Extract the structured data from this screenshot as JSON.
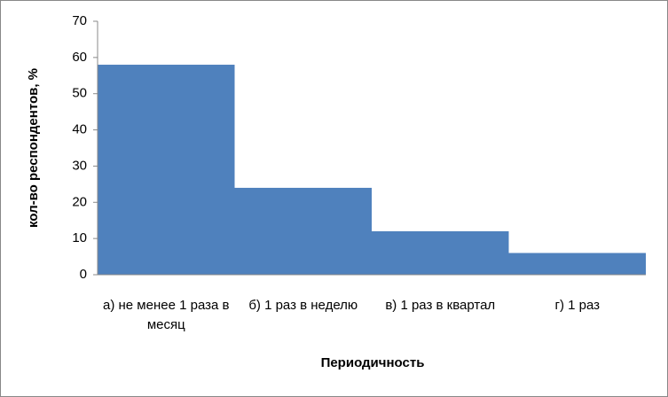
{
  "chart_data": {
    "type": "bar",
    "title": null,
    "x_label": "Периодичность",
    "y_label": "кол-во респондентов, %",
    "categories": [
      "а) не менее 1 раза в месяц",
      "б) 1 раз в неделю",
      "в) 1 раз в квартал",
      "г) 1 раз"
    ],
    "values": [
      58,
      24,
      12,
      6
    ],
    "color": "#4f81bd",
    "ylim": [
      0,
      70
    ],
    "yticks": [
      0,
      10,
      20,
      30,
      40,
      50,
      60,
      70
    ],
    "grid": false
  }
}
